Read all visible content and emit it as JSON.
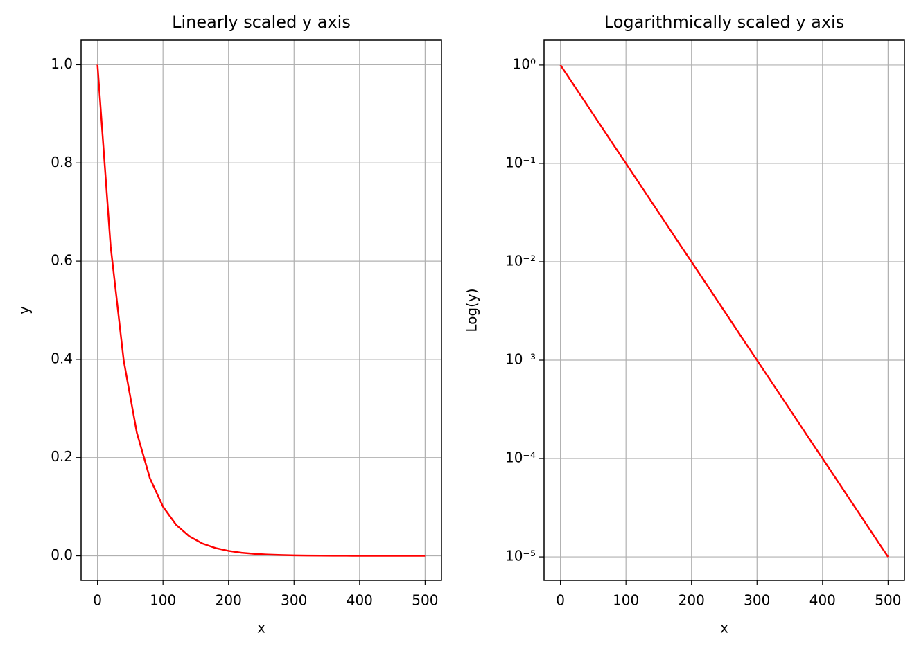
{
  "chart_data": [
    {
      "type": "line",
      "title": "Linearly scaled y axis",
      "xlabel": "x",
      "ylabel": "y",
      "yscale": "linear",
      "grid": true,
      "x": [
        0,
        20,
        40,
        60,
        80,
        100,
        120,
        140,
        160,
        180,
        200,
        220,
        240,
        260,
        280,
        300,
        320,
        340,
        360,
        380,
        400,
        420,
        440,
        460,
        480,
        500
      ],
      "series": [
        {
          "name": "y",
          "color": "#ff0000",
          "values": [
            1,
            0.631,
            0.398,
            0.251,
            0.158,
            0.1,
            0.0631,
            0.0398,
            0.0251,
            0.0158,
            0.01,
            0.00631,
            0.00398,
            0.00251,
            0.00158,
            0.001,
            0.000631,
            0.000398,
            0.000251,
            0.000158,
            0.0001,
            6.31e-05,
            3.98e-05,
            2.51e-05,
            1.58e-05,
            1e-05
          ]
        }
      ],
      "xlim": [
        -25,
        525
      ],
      "xticks": [
        0,
        100,
        200,
        300,
        400,
        500
      ],
      "ylim": [
        -0.05,
        1.05
      ],
      "yticks": [
        {
          "value": 0,
          "label": "0.0"
        },
        0.2,
        0.4,
        0.6,
        0.8,
        {
          "value": 1,
          "label": "1.0"
        }
      ]
    },
    {
      "type": "line",
      "title": "Logarithmically scaled y axis",
      "xlabel": "x",
      "ylabel": "Log(y)",
      "yscale": "log",
      "grid": true,
      "x": [
        0,
        20,
        40,
        60,
        80,
        100,
        120,
        140,
        160,
        180,
        200,
        220,
        240,
        260,
        280,
        300,
        320,
        340,
        360,
        380,
        400,
        420,
        440,
        460,
        480,
        500
      ],
      "series": [
        {
          "name": "y",
          "color": "#ff0000",
          "values": [
            1,
            0.631,
            0.398,
            0.251,
            0.158,
            0.1,
            0.0631,
            0.0398,
            0.0251,
            0.0158,
            0.01,
            0.00631,
            0.00398,
            0.00251,
            0.00158,
            0.001,
            0.000631,
            0.000398,
            0.000251,
            0.000158,
            0.0001,
            6.31e-05,
            3.98e-05,
            2.51e-05,
            1.58e-05,
            1e-05
          ]
        }
      ],
      "xlim": [
        -25,
        525
      ],
      "xticks": [
        0,
        100,
        200,
        300,
        400,
        500
      ],
      "ylim": [
        5.77e-06,
        1.79
      ],
      "yticks": [
        {
          "value": 1e-05,
          "label": "10⁻⁵"
        },
        {
          "value": 0.0001,
          "label": "10⁻⁴"
        },
        {
          "value": 0.001,
          "label": "10⁻³"
        },
        {
          "value": 0.01,
          "label": "10⁻²"
        },
        {
          "value": 0.1,
          "label": "10⁻¹"
        },
        {
          "value": 1,
          "label": "10⁰"
        }
      ]
    }
  ]
}
